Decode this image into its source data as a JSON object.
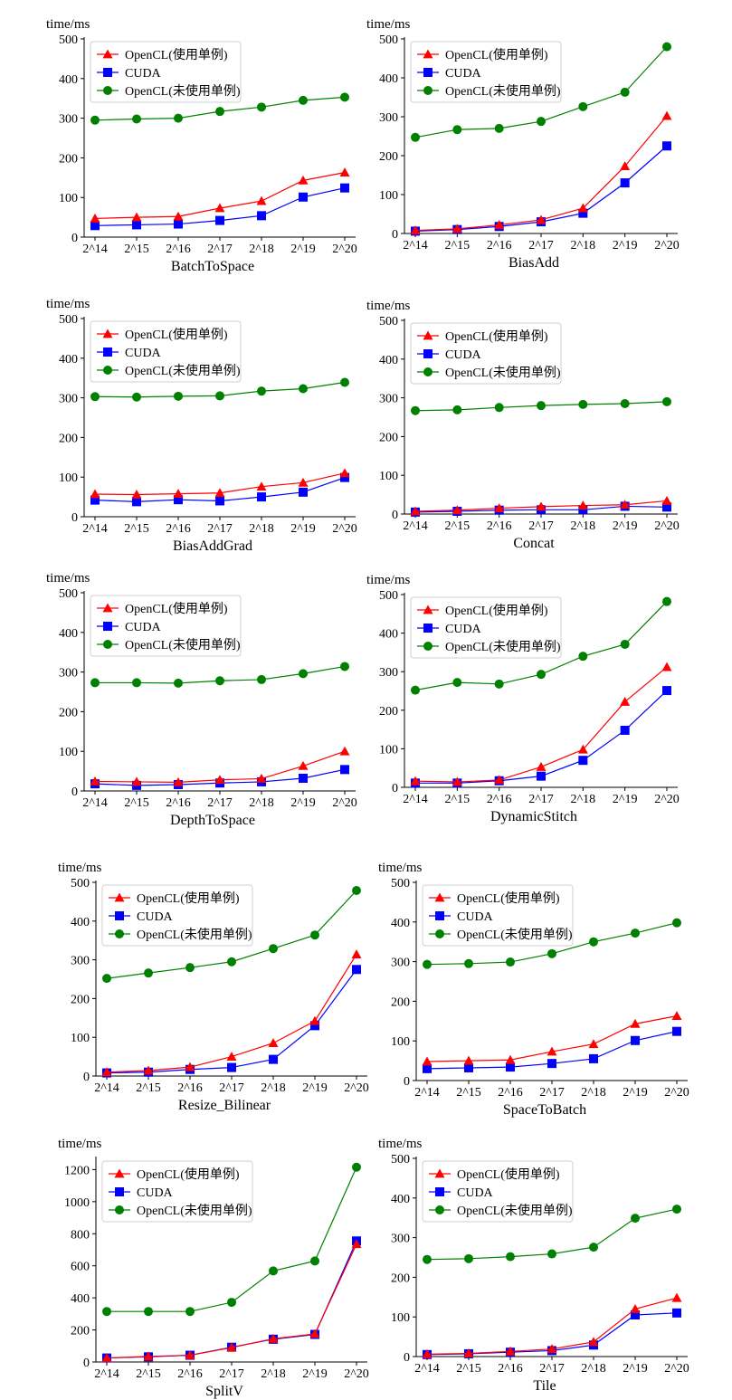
{
  "figure": {
    "series_styles": [
      {
        "name": "OpenCL(使用单例)",
        "color": "#ff0000",
        "marker": "triangle"
      },
      {
        "name": "CUDA",
        "color": "#0000ff",
        "marker": "square"
      },
      {
        "name": "OpenCL(未使用单例)",
        "color": "#008000",
        "marker": "circle"
      }
    ]
  },
  "chart_data": [
    {
      "type": "line",
      "title": "",
      "xlabel": "BatchToSpace",
      "ylabel": "time/ms",
      "categories": [
        "2^14",
        "2^15",
        "2^16",
        "2^17",
        "2^18",
        "2^19",
        "2^20"
      ],
      "ylim": [
        0,
        500
      ],
      "yticks": [
        0,
        100,
        200,
        300,
        400,
        500
      ],
      "grid": false,
      "legend": "upper-left",
      "series": [
        {
          "name": "OpenCL(使用单例)",
          "values": [
            47,
            50,
            52,
            73,
            91,
            143,
            163
          ]
        },
        {
          "name": "CUDA",
          "values": [
            29,
            31,
            33,
            42,
            54,
            101,
            124
          ]
        },
        {
          "name": "OpenCL(未使用单例)",
          "values": [
            295,
            298,
            300,
            317,
            328,
            345,
            353
          ]
        }
      ]
    },
    {
      "type": "line",
      "title": "",
      "xlabel": "BiasAdd",
      "ylabel": "time/ms",
      "categories": [
        "2^14",
        "2^15",
        "2^16",
        "2^17",
        "2^18",
        "2^19",
        "2^20"
      ],
      "ylim": [
        0,
        500
      ],
      "yticks": [
        0,
        100,
        200,
        300,
        400,
        500
      ],
      "grid": false,
      "legend": "upper-left",
      "series": [
        {
          "name": "OpenCL(使用单例)",
          "values": [
            8,
            12,
            22,
            35,
            65,
            173,
            302
          ]
        },
        {
          "name": "CUDA",
          "values": [
            6,
            10,
            18,
            30,
            52,
            130,
            225
          ]
        },
        {
          "name": "OpenCL(未使用单例)",
          "values": [
            247,
            267,
            270,
            288,
            326,
            363,
            480
          ]
        }
      ]
    },
    {
      "type": "line",
      "title": "",
      "xlabel": "BiasAddGrad",
      "ylabel": "time/ms",
      "categories": [
        "2^14",
        "2^15",
        "2^16",
        "2^17",
        "2^18",
        "2^19",
        "2^20"
      ],
      "ylim": [
        0,
        500
      ],
      "yticks": [
        0,
        100,
        200,
        300,
        400,
        500
      ],
      "grid": false,
      "legend": "upper-left",
      "series": [
        {
          "name": "OpenCL(使用单例)",
          "values": [
            57,
            56,
            58,
            60,
            76,
            86,
            110
          ]
        },
        {
          "name": "CUDA",
          "values": [
            42,
            38,
            43,
            40,
            50,
            62,
            99
          ]
        },
        {
          "name": "OpenCL(未使用单例)",
          "values": [
            303,
            302,
            304,
            305,
            317,
            323,
            339
          ]
        }
      ]
    },
    {
      "type": "line",
      "title": "",
      "xlabel": "Concat",
      "ylabel": "time/ms",
      "categories": [
        "2^14",
        "2^15",
        "2^16",
        "2^17",
        "2^18",
        "2^19",
        "2^20"
      ],
      "ylim": [
        0,
        500
      ],
      "yticks": [
        0,
        100,
        200,
        300,
        400,
        500
      ],
      "grid": false,
      "legend": "upper-left",
      "series": [
        {
          "name": "OpenCL(使用单例)",
          "values": [
            7,
            10,
            15,
            19,
            22,
            24,
            34
          ]
        },
        {
          "name": "CUDA",
          "values": [
            5,
            7,
            10,
            11,
            11,
            20,
            18
          ]
        },
        {
          "name": "OpenCL(未使用单例)",
          "values": [
            267,
            269,
            275,
            280,
            283,
            285,
            290
          ]
        }
      ]
    },
    {
      "type": "line",
      "title": "",
      "xlabel": "DepthToSpace",
      "ylabel": "time/ms",
      "categories": [
        "2^14",
        "2^15",
        "2^16",
        "2^17",
        "2^18",
        "2^19",
        "2^20"
      ],
      "ylim": [
        0,
        500
      ],
      "yticks": [
        0,
        100,
        200,
        300,
        400,
        500
      ],
      "grid": false,
      "legend": "upper-left",
      "series": [
        {
          "name": "OpenCL(使用单例)",
          "values": [
            24,
            23,
            22,
            28,
            31,
            63,
            100
          ]
        },
        {
          "name": "CUDA",
          "values": [
            18,
            14,
            16,
            20,
            23,
            32,
            54
          ]
        },
        {
          "name": "OpenCL(未使用单例)",
          "values": [
            273,
            273,
            272,
            278,
            281,
            296,
            314
          ]
        }
      ]
    },
    {
      "type": "line",
      "title": "",
      "xlabel": "DynamicStitch",
      "ylabel": "time/ms",
      "categories": [
        "2^14",
        "2^15",
        "2^16",
        "2^17",
        "2^18",
        "2^19",
        "2^20"
      ],
      "ylim": [
        0,
        500
      ],
      "yticks": [
        0,
        100,
        200,
        300,
        400,
        500
      ],
      "grid": false,
      "legend": "upper-left",
      "series": [
        {
          "name": "OpenCL(使用单例)",
          "values": [
            16,
            14,
            19,
            53,
            98,
            222,
            312
          ]
        },
        {
          "name": "CUDA",
          "values": [
            11,
            11,
            17,
            29,
            70,
            148,
            251
          ]
        },
        {
          "name": "OpenCL(未使用单例)",
          "values": [
            252,
            272,
            268,
            293,
            340,
            371,
            482
          ]
        }
      ]
    },
    {
      "type": "line",
      "title": "",
      "xlabel": "Resize_Bilinear",
      "ylabel": "time/ms",
      "categories": [
        "2^14",
        "2^15",
        "2^16",
        "2^17",
        "2^18",
        "2^19",
        "2^20"
      ],
      "ylim": [
        0,
        500
      ],
      "yticks": [
        0,
        100,
        200,
        300,
        400,
        500
      ],
      "grid": false,
      "legend": "upper-left",
      "series": [
        {
          "name": "OpenCL(使用单例)",
          "values": [
            10,
            14,
            23,
            50,
            85,
            142,
            314
          ]
        },
        {
          "name": "CUDA",
          "values": [
            8,
            10,
            17,
            22,
            43,
            130,
            275
          ]
        },
        {
          "name": "OpenCL(未使用单例)",
          "values": [
            252,
            266,
            280,
            295,
            329,
            364,
            479
          ]
        }
      ]
    },
    {
      "type": "line",
      "title": "",
      "xlabel": "SpaceToBatch",
      "ylabel": "time/ms",
      "categories": [
        "2^14",
        "2^15",
        "2^16",
        "2^17",
        "2^18",
        "2^19",
        "2^20"
      ],
      "ylim": [
        0,
        500
      ],
      "yticks": [
        0,
        100,
        200,
        300,
        400,
        500
      ],
      "grid": false,
      "legend": "upper-left",
      "series": [
        {
          "name": "OpenCL(使用单例)",
          "values": [
            48,
            50,
            52,
            73,
            92,
            143,
            163
          ]
        },
        {
          "name": "CUDA",
          "values": [
            30,
            32,
            34,
            43,
            55,
            101,
            124
          ]
        },
        {
          "name": "OpenCL(未使用单例)",
          "values": [
            293,
            295,
            299,
            320,
            350,
            372,
            398
          ]
        }
      ]
    },
    {
      "type": "line",
      "title": "",
      "xlabel": "SplitV",
      "ylabel": "time/ms",
      "categories": [
        "2^14",
        "2^15",
        "2^16",
        "2^17",
        "2^18",
        "2^19",
        "2^20"
      ],
      "ylim": [
        0,
        1270
      ],
      "yticks": [
        0,
        200,
        400,
        600,
        800,
        1000,
        1200
      ],
      "grid": false,
      "legend": "upper-left",
      "series": [
        {
          "name": "OpenCL(使用单例)",
          "values": [
            25,
            35,
            42,
            90,
            145,
            175,
            735
          ]
        },
        {
          "name": "CUDA",
          "values": [
            25,
            32,
            42,
            92,
            142,
            172,
            755
          ]
        },
        {
          "name": "OpenCL(未使用单例)",
          "values": [
            315,
            315,
            315,
            372,
            568,
            630,
            1215
          ]
        }
      ]
    },
    {
      "type": "line",
      "title": "",
      "xlabel": "Tile",
      "ylabel": "time/ms",
      "categories": [
        "2^14",
        "2^15",
        "2^16",
        "2^17",
        "2^18",
        "2^19",
        "2^20"
      ],
      "ylim": [
        0,
        500
      ],
      "yticks": [
        0,
        100,
        200,
        300,
        400,
        500
      ],
      "grid": false,
      "legend": "upper-left",
      "series": [
        {
          "name": "OpenCL(使用单例)",
          "values": [
            6,
            8,
            13,
            19,
            37,
            120,
            148
          ]
        },
        {
          "name": "CUDA",
          "values": [
            5,
            7,
            11,
            15,
            29,
            105,
            110
          ]
        },
        {
          "name": "OpenCL(未使用单例)",
          "values": [
            245,
            247,
            252,
            259,
            276,
            349,
            372
          ]
        }
      ]
    }
  ]
}
